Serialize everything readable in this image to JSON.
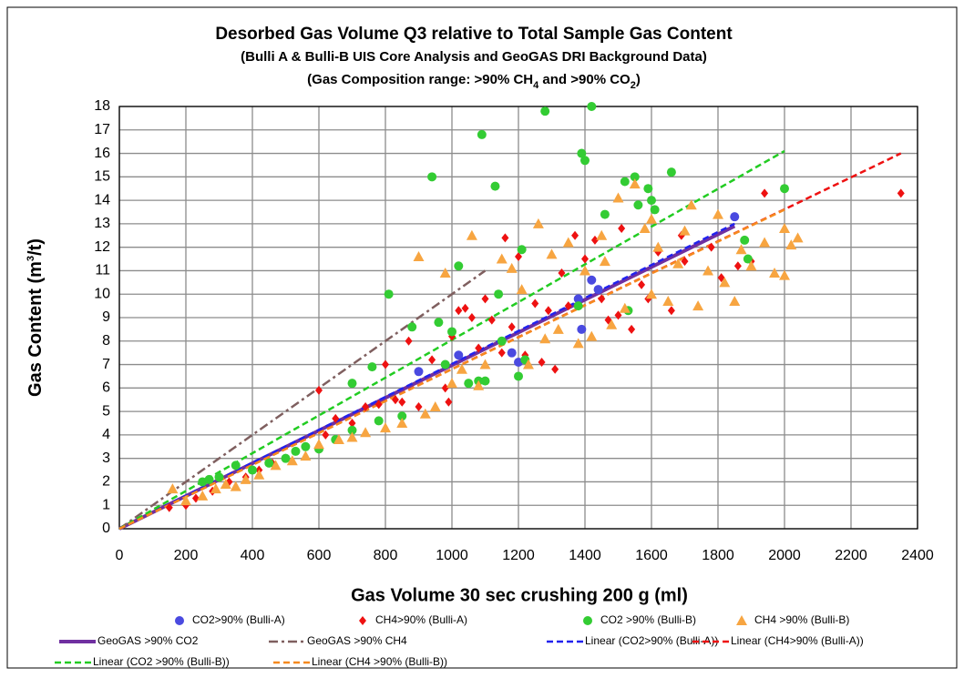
{
  "chart_data": {
    "type": "scatter",
    "title": "Desorbed Gas Volume Q3 relative to Total Sample Gas Content",
    "subtitle": "(Bulli A & Bulli-B UIS Core Analysis and GeoGAS DRI Background Data)",
    "subtitle2": [
      "(Gas Composition range: >90% CH",
      "4",
      " and >90% CO",
      "2",
      ")"
    ],
    "xlabel": "Gas Volume 30 sec crushing 200 g (ml)",
    "ylabel": [
      "Gas Content (m",
      "3",
      "/t)"
    ],
    "xlim": [
      0,
      2400
    ],
    "xticks": [
      0,
      200,
      400,
      600,
      800,
      1000,
      1200,
      1400,
      1600,
      1800,
      2000,
      2200,
      2400
    ],
    "ylim": [
      0,
      18
    ],
    "yticks": [
      0,
      1,
      2,
      3,
      4,
      5,
      6,
      7,
      8,
      9,
      10,
      11,
      12,
      13,
      14,
      15,
      16,
      17,
      18
    ],
    "grid": true,
    "legend": "bottom",
    "series": [
      {
        "name": "CO2>90% (Bulli-A)",
        "color": "#4a4ae0",
        "marker": "circle",
        "x": [
          900,
          1020,
          1180,
          1380,
          1390,
          1420,
          1440,
          1850,
          1200
        ],
        "values": [
          6.7,
          7.4,
          7.5,
          9.8,
          8.5,
          10.6,
          10.2,
          13.3,
          7.1
        ]
      },
      {
        "name": "CH4>90% (Bulli-A)",
        "color": "#ee1111",
        "marker": "diamond",
        "x": [
          150,
          200,
          230,
          280,
          330,
          380,
          420,
          460,
          500,
          560,
          600,
          620,
          650,
          700,
          740,
          780,
          800,
          830,
          850,
          870,
          900,
          940,
          980,
          990,
          1000,
          1020,
          1040,
          1060,
          1080,
          1100,
          1120,
          1150,
          1160,
          1180,
          1200,
          1220,
          1250,
          1270,
          1290,
          1310,
          1330,
          1350,
          1370,
          1400,
          1430,
          1450,
          1470,
          1500,
          1510,
          1540,
          1570,
          1590,
          1620,
          1660,
          1700,
          1780,
          1810,
          1860,
          1900,
          1940,
          2350,
          1690
        ],
        "values": [
          0.9,
          1.0,
          1.3,
          1.6,
          2.0,
          2.2,
          2.5,
          2.8,
          3.0,
          3.5,
          5.9,
          4.0,
          4.7,
          4.5,
          5.2,
          5.3,
          7.0,
          5.5,
          5.4,
          8.0,
          5.2,
          7.2,
          6.0,
          5.4,
          8.2,
          9.3,
          9.4,
          9.0,
          7.7,
          9.8,
          8.9,
          7.5,
          12.4,
          8.6,
          11.6,
          7.4,
          9.6,
          7.1,
          9.3,
          6.8,
          10.9,
          9.5,
          12.5,
          11.5,
          12.3,
          9.8,
          8.9,
          9.1,
          12.8,
          8.5,
          10.4,
          9.8,
          11.8,
          9.3,
          11.4,
          12.0,
          10.7,
          11.2,
          11.4,
          14.3,
          14.3,
          12.5
        ]
      },
      {
        "name": "CO2 >90% (Bulli-B)",
        "color": "#33cc33",
        "marker": "circle",
        "x": [
          250,
          270,
          300,
          350,
          400,
          450,
          500,
          530,
          560,
          600,
          650,
          700,
          700,
          760,
          780,
          810,
          850,
          880,
          940,
          960,
          980,
          1000,
          1020,
          1050,
          1080,
          1090,
          1100,
          1130,
          1140,
          1150,
          1200,
          1210,
          1280,
          1380,
          1390,
          1400,
          1420,
          1460,
          1520,
          1550,
          1560,
          1590,
          1600,
          1610,
          1660,
          1880,
          1890,
          2000,
          1530,
          1220
        ],
        "values": [
          2.0,
          2.1,
          2.2,
          2.7,
          2.5,
          2.8,
          3.0,
          3.3,
          3.5,
          3.4,
          3.8,
          4.2,
          6.2,
          6.9,
          4.6,
          10.0,
          4.8,
          8.6,
          15.0,
          8.8,
          7.0,
          8.4,
          11.2,
          6.2,
          6.3,
          16.8,
          6.3,
          14.6,
          10.0,
          8.0,
          6.5,
          11.9,
          17.8,
          9.5,
          16.0,
          15.7,
          18.0,
          13.4,
          14.8,
          15.0,
          13.8,
          14.5,
          14.0,
          13.6,
          15.2,
          12.3,
          11.5,
          14.5,
          9.3,
          7.2
        ]
      },
      {
        "name": "CH4 >90% (Bulli-B)",
        "color": "#f7a541",
        "marker": "triangle",
        "x": [
          160,
          200,
          250,
          290,
          320,
          350,
          380,
          420,
          470,
          520,
          560,
          600,
          660,
          700,
          740,
          800,
          850,
          900,
          920,
          950,
          980,
          1000,
          1030,
          1060,
          1080,
          1100,
          1150,
          1180,
          1210,
          1230,
          1260,
          1280,
          1300,
          1320,
          1350,
          1380,
          1400,
          1420,
          1450,
          1480,
          1500,
          1520,
          1550,
          1580,
          1600,
          1620,
          1650,
          1680,
          1700,
          1720,
          1740,
          1770,
          1800,
          1820,
          1850,
          1870,
          1900,
          1940,
          1970,
          2000,
          2000,
          2020,
          2040,
          1600,
          1460
        ],
        "values": [
          1.7,
          1.2,
          1.4,
          1.7,
          1.9,
          1.8,
          2.1,
          2.3,
          2.7,
          2.9,
          3.1,
          3.6,
          3.8,
          3.9,
          4.1,
          4.3,
          4.5,
          11.6,
          4.9,
          5.2,
          10.9,
          6.2,
          6.8,
          12.5,
          6.1,
          7.0,
          11.5,
          11.1,
          10.2,
          7.0,
          13.0,
          8.1,
          11.7,
          8.5,
          12.2,
          7.9,
          11.0,
          8.2,
          12.5,
          8.7,
          14.1,
          9.4,
          14.7,
          12.8,
          10.0,
          12.0,
          9.7,
          11.3,
          12.7,
          13.8,
          9.5,
          11.0,
          13.4,
          10.5,
          9.7,
          11.9,
          11.2,
          12.2,
          10.9,
          10.8,
          12.8,
          12.1,
          12.4,
          13.2,
          11.4
        ]
      },
      {
        "name": "GeoGAS >90% CO2",
        "color": "#7030a0",
        "marker": "none",
        "dash": "solid",
        "x": [
          0,
          1850
        ],
        "values": [
          0,
          12.9
        ]
      },
      {
        "name": "GeoGAS >90% CH4",
        "color": "#7f5f5f",
        "marker": "none",
        "dash": "dashdot",
        "x": [
          0,
          1100
        ],
        "values": [
          0,
          11
        ]
      },
      {
        "name": "Linear (CO2>90% (Bulli-A))",
        "color": "#2222ee",
        "marker": "none",
        "dash": "dashed",
        "x": [
          0,
          1850
        ],
        "values": [
          0,
          13.0
        ]
      },
      {
        "name": "Linear (CH4>90% (Bulli-A))",
        "color": "#ee1111",
        "marker": "none",
        "dash": "dashed",
        "x": [
          0,
          2350
        ],
        "values": [
          0,
          16
        ]
      },
      {
        "name": "Linear (CO2 >90% (Bulli-B))",
        "color": "#22cc22",
        "marker": "none",
        "dash": "dashed",
        "x": [
          0,
          2000
        ],
        "values": [
          0,
          16.1
        ]
      },
      {
        "name": "Linear (CH4 >90% (Bulli-B))",
        "color": "#f58a1f",
        "marker": "none",
        "dash": "dashed",
        "x": [
          0,
          2000
        ],
        "values": [
          0,
          13.6
        ]
      }
    ]
  }
}
